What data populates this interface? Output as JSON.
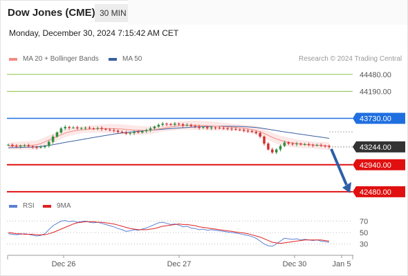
{
  "header": {
    "title": "Dow Jones (CME)",
    "interval": "30 MIN"
  },
  "timestamp": "Monday, December 30, 2024 7:15:42 AM CET",
  "credit": "Research © 2024 Trading Central",
  "legend": {
    "ma20": {
      "label": "MA 20 + Bollinger Bands",
      "color": "#f28b82"
    },
    "ma50": {
      "label": "MA 50",
      "color": "#3a5fa0"
    }
  },
  "rsi_legend": {
    "rsi": {
      "label": "RSI",
      "color": "#5a7fd6"
    },
    "ma9": {
      "label": "9MA",
      "color": "#e02020"
    }
  },
  "chart_data": {
    "type": "candlestick",
    "price_levels": [
      {
        "label": "44480.00",
        "value": 44480,
        "kind": "resistance",
        "color": "#8bc34a"
      },
      {
        "label": "44190.00",
        "value": 44190,
        "kind": "resistance",
        "color": "#8bc34a"
      },
      {
        "label": "43730.00",
        "value": 43730,
        "kind": "pivot",
        "color": "#1f6fe0"
      },
      {
        "label": "43244.00",
        "value": 43244,
        "kind": "last",
        "color": "#333333"
      },
      {
        "label": "42940.00",
        "value": 42940,
        "kind": "support",
        "color": "#e01010"
      },
      {
        "label": "42480.00",
        "value": 42480,
        "kind": "support",
        "color": "#e01010"
      }
    ],
    "x_ticks": [
      "Dec 26",
      "Dec 27",
      "Dec 30",
      "Jan 5"
    ],
    "rsi_ticks": [
      70,
      50,
      30
    ],
    "price_range": [
      42400,
      44600
    ],
    "close": [
      43280,
      43260,
      43250,
      43265,
      43270,
      43255,
      43240,
      43235,
      43240,
      43260,
      43330,
      43420,
      43490,
      43560,
      43585,
      43570,
      43575,
      43560,
      43565,
      43570,
      43560,
      43555,
      43565,
      43550,
      43540,
      43530,
      43520,
      43500,
      43490,
      43470,
      43480,
      43500,
      43490,
      43510,
      43530,
      43560,
      43590,
      43620,
      43640,
      43630,
      43620,
      43640,
      43630,
      43610,
      43620,
      43600,
      43590,
      43570,
      43580,
      43560,
      43575,
      43570,
      43565,
      43560,
      43555,
      43550,
      43540,
      43535,
      43520,
      43515,
      43500,
      43480,
      43420,
      43300,
      43200,
      43150,
      43200,
      43260,
      43320,
      43300,
      43290,
      43300,
      43285,
      43290,
      43280,
      43270,
      43275,
      43265,
      43260,
      43244
    ],
    "ma20": [
      43260,
      43262,
      43264,
      43266,
      43268,
      43270,
      43272,
      43280,
      43300,
      43330,
      43360,
      43390,
      43420,
      43450,
      43480,
      43500,
      43515,
      43525,
      43535,
      43540,
      43545,
      43550,
      43553,
      43555,
      43556,
      43556,
      43555,
      43552,
      43548,
      43542,
      43536,
      43530,
      43526,
      43524,
      43525,
      43530,
      43538,
      43548,
      43560,
      43572,
      43584,
      43594,
      43602,
      43608,
      43612,
      43614,
      43614,
      43612,
      43608,
      43604,
      43600,
      43596,
      43592,
      43588,
      43584,
      43580,
      43575,
      43570,
      43562,
      43552,
      43540,
      43524,
      43502,
      43472,
      43440,
      43408,
      43380,
      43356,
      43338,
      43324,
      43312,
      43302,
      43294,
      43288,
      43282,
      43277,
      43272,
      43267,
      43262,
      43255
    ],
    "ma50": [
      43230,
      43232,
      43234,
      43236,
      43238,
      43240,
      43242,
      43246,
      43252,
      43260,
      43270,
      43282,
      43295,
      43308,
      43320,
      43332,
      43344,
      43356,
      43368,
      43380,
      43392,
      43404,
      43416,
      43428,
      43440,
      43452,
      43462,
      43472,
      43480,
      43488,
      43496,
      43503,
      43509,
      43515,
      43521,
      43527,
      43533,
      43539,
      43545,
      43551,
      43556,
      43561,
      43566,
      43571,
      43576,
      43580,
      43584,
      43587,
      43590,
      43592,
      43594,
      43595,
      43596,
      43596,
      43596,
      43595,
      43594,
      43592,
      43589,
      43585,
      43580,
      43574,
      43566,
      43556,
      43545,
      43533,
      43522,
      43511,
      43500,
      43490,
      43480,
      43470,
      43460,
      43450,
      43440,
      43430,
      43420,
      43410,
      43400,
      43390
    ],
    "rsi": [
      48,
      47,
      46,
      47,
      48,
      47,
      45,
      44,
      45,
      48,
      55,
      62,
      66,
      70,
      71,
      69,
      70,
      68,
      69,
      70,
      68,
      67,
      68,
      66,
      64,
      62,
      60,
      57,
      55,
      52,
      53,
      55,
      54,
      56,
      58,
      61,
      64,
      67,
      68,
      66,
      64,
      65,
      63,
      60,
      61,
      58,
      57,
      55,
      56,
      54,
      55,
      54,
      53,
      52,
      51,
      50,
      49,
      48,
      46,
      45,
      43,
      40,
      35,
      30,
      27,
      26,
      30,
      35,
      40,
      39,
      38,
      39,
      37,
      38,
      37,
      36,
      37,
      35,
      34,
      33
    ],
    "rsi_ma9": [
      50,
      49,
      48,
      48,
      47,
      47,
      47,
      46,
      46,
      46,
      48,
      50,
      53,
      56,
      59,
      62,
      65,
      67,
      68,
      69,
      69,
      69,
      68,
      68,
      67,
      66,
      65,
      63,
      61,
      59,
      57,
      56,
      55,
      55,
      55,
      56,
      57,
      59,
      61,
      62,
      63,
      64,
      65,
      64,
      64,
      63,
      62,
      60,
      59,
      58,
      57,
      56,
      55,
      54,
      53,
      52,
      51,
      50,
      49,
      48,
      46,
      44,
      42,
      39,
      36,
      33,
      32,
      31,
      32,
      33,
      34,
      35,
      36,
      37,
      37,
      37,
      37,
      37,
      36,
      35
    ],
    "rsi_range": [
      15,
      85
    ]
  }
}
